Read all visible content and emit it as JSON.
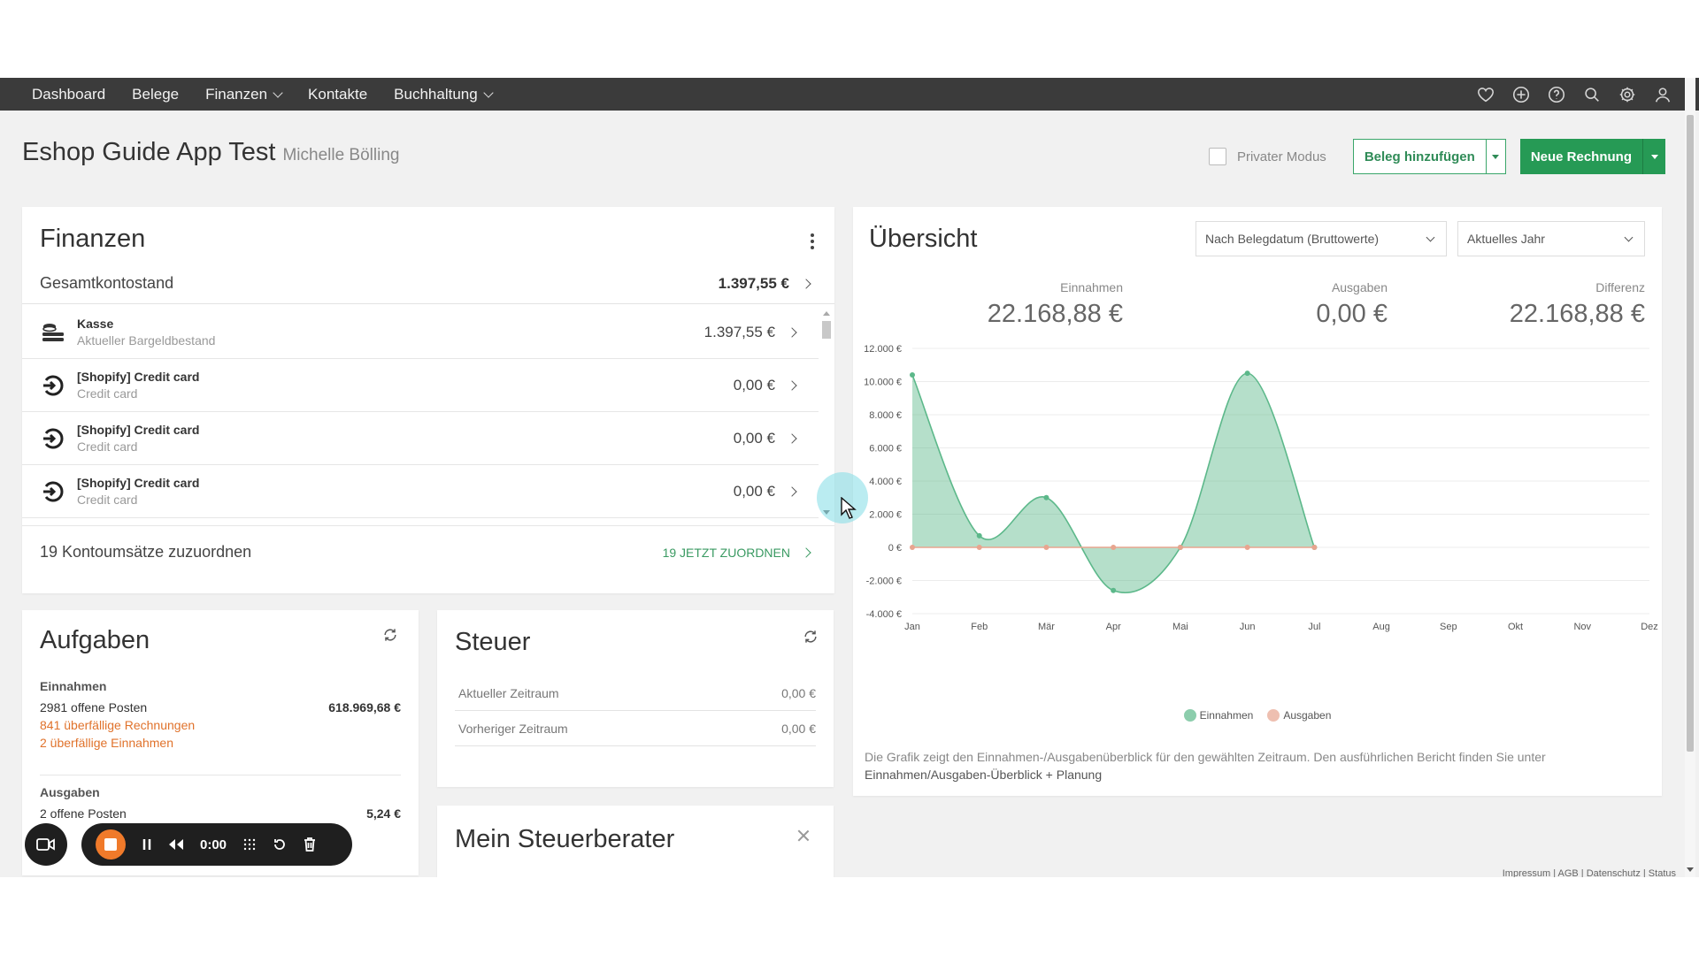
{
  "nav": {
    "items": [
      {
        "label": "Dashboard",
        "dropdown": false
      },
      {
        "label": "Belege",
        "dropdown": false
      },
      {
        "label": "Finanzen",
        "dropdown": true
      },
      {
        "label": "Kontakte",
        "dropdown": false
      },
      {
        "label": "Buchhaltung",
        "dropdown": true
      }
    ],
    "icons": [
      "heart-icon",
      "plus-circle-icon",
      "help-icon",
      "search-icon",
      "gear-icon",
      "user-icon"
    ]
  },
  "header": {
    "title": "Eshop Guide App Test",
    "user": "Michelle Bölling",
    "private_mode_label": "Privater Modus",
    "add_receipt_label": "Beleg hinzufügen",
    "new_invoice_label": "Neue Rechnung"
  },
  "finanzen": {
    "title": "Finanzen",
    "total_label": "Gesamtkontostand",
    "total_value": "1.397,55 €",
    "accounts": [
      {
        "name": "Kasse",
        "sub": "Aktueller Bargeldbestand",
        "value": "1.397,55 €",
        "icon": "cash-stack-icon"
      },
      {
        "name": "[Shopify] Credit card",
        "sub": "Credit card",
        "value": "0,00 €",
        "icon": "shopify-sync-icon"
      },
      {
        "name": "[Shopify] Credit card",
        "sub": "Credit card",
        "value": "0,00 €",
        "icon": "shopify-sync-icon"
      },
      {
        "name": "[Shopify] Credit card",
        "sub": "Credit card",
        "value": "0,00 €",
        "icon": "shopify-sync-icon"
      }
    ],
    "assign_label": "19 Kontoumsätze zuzuordnen",
    "assign_link": "19 JETZT ZUORDNEN"
  },
  "uebersicht": {
    "title": "Übersicht",
    "filter_mode": "Nach Belegdatum (Bruttowerte)",
    "filter_period": "Aktuelles Jahr",
    "kpis": [
      {
        "label": "Einnahmen",
        "value": "22.168,88 €"
      },
      {
        "label": "Ausgaben",
        "value": "0,00 €"
      },
      {
        "label": "Differenz",
        "value": "22.168,88 €"
      }
    ],
    "note_text": "Die Grafik zeigt den Einnahmen-/Ausgabenüberblick für den gewählten Zeitraum. Den ausführlichen Bericht finden Sie unter",
    "note_link": "Einnahmen/Ausgaben-Überblick + Planung"
  },
  "chart_data": {
    "type": "area",
    "categories": [
      "Jan",
      "Feb",
      "Mär",
      "Apr",
      "Mai",
      "Jun",
      "Jul",
      "Aug",
      "Sep",
      "Okt",
      "Nov",
      "Dez"
    ],
    "series": [
      {
        "name": "Einnahmen",
        "color": "#5cb88a",
        "values": [
          10400,
          700,
          3000,
          -2600,
          0,
          10500,
          0,
          null,
          null,
          null,
          null,
          null
        ]
      },
      {
        "name": "Ausgaben",
        "color": "#e8a58f",
        "values": [
          0,
          0,
          0,
          0,
          0,
          0,
          0,
          null,
          null,
          null,
          null,
          null
        ]
      }
    ],
    "ylim": [
      -4000,
      12000
    ],
    "yticks": [
      "12.000 €",
      "10.000 €",
      "8.000 €",
      "6.000 €",
      "4.000 €",
      "2.000 €",
      "0 €",
      "-2.000 €",
      "-4.000 €"
    ],
    "ytick_values": [
      12000,
      10000,
      8000,
      6000,
      4000,
      2000,
      0,
      -2000,
      -4000
    ],
    "legend_position": "bottom",
    "grid": true
  },
  "aufgaben": {
    "title": "Aufgaben",
    "income_header": "Einnahmen",
    "open_items": "2981  offene Posten",
    "open_amount": "618.969,68 €",
    "overdue_invoices": "841  überfällige Rechnungen",
    "overdue_income": "2  überfällige Einnahmen",
    "expense_header": "Ausgaben",
    "expense_open": "2  offene Posten",
    "expense_amount": "5,24 €"
  },
  "steuer": {
    "title": "Steuer",
    "rows": [
      {
        "label": "Aktueller Zeitraum",
        "value": "0,00 €"
      },
      {
        "label": "Vorheriger Zeitraum",
        "value": "0,00 €"
      }
    ]
  },
  "steuerberater": {
    "title": "Mein Steuerberater"
  },
  "footer": "Impressum | AGB | Datenschutz | Status",
  "recorder": {
    "time": "0:00"
  }
}
